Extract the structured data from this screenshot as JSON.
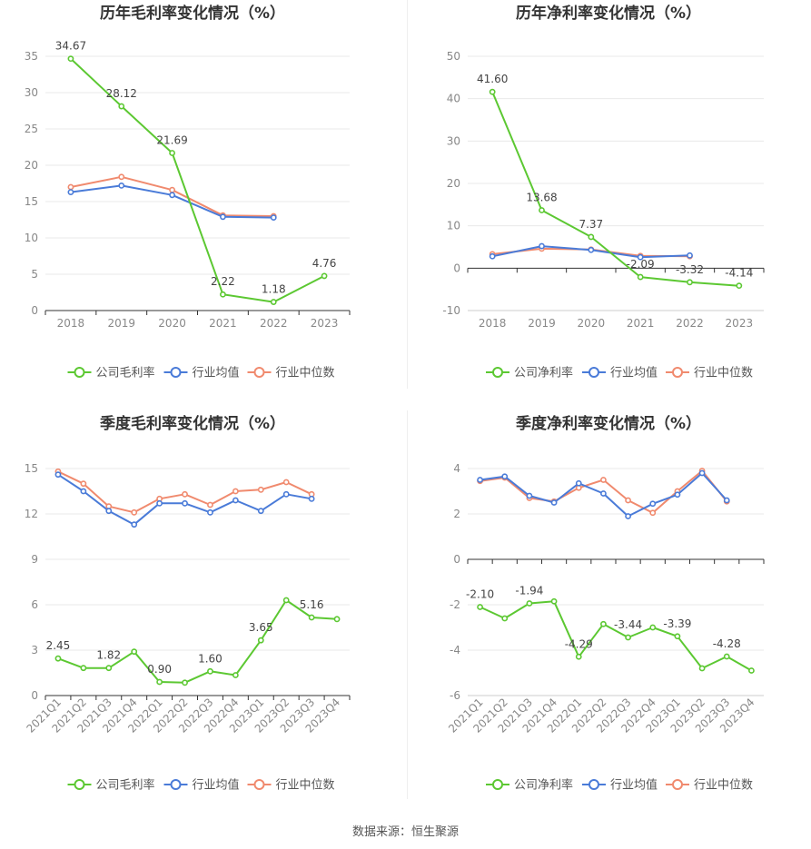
{
  "colors": {
    "company": "#5cc832",
    "industry_avg": "#4a7bd8",
    "industry_median": "#f08a6e",
    "grid": "#e9e9e9",
    "axis": "#333333",
    "tick": "#888888",
    "label": "#444444"
  },
  "source": "数据来源：恒生聚源",
  "chart_data": [
    {
      "type": "line",
      "title": "历年毛利率变化情况（%）",
      "categories": [
        "2018",
        "2019",
        "2020",
        "2021",
        "2022",
        "2023"
      ],
      "ylim": [
        0,
        35
      ],
      "yticks": [
        0,
        5,
        10,
        15,
        20,
        25,
        30,
        35
      ],
      "series": [
        {
          "name": "公司毛利率",
          "color_key": "company",
          "values": [
            34.67,
            28.12,
            21.69,
            2.22,
            1.18,
            4.76
          ]
        },
        {
          "name": "行业均值",
          "color_key": "industry_avg",
          "values": [
            16.3,
            17.2,
            15.9,
            12.9,
            12.8,
            null
          ]
        },
        {
          "name": "行业中位数",
          "color_key": "industry_median",
          "values": [
            17.0,
            18.4,
            16.6,
            13.1,
            13.0,
            null
          ]
        }
      ],
      "data_labels": [
        {
          "index": 0,
          "text": "34.67"
        },
        {
          "index": 1,
          "text": "28.12"
        },
        {
          "index": 2,
          "text": "21.69"
        },
        {
          "index": 3,
          "text": "2.22"
        },
        {
          "index": 4,
          "text": "1.18"
        },
        {
          "index": 5,
          "text": "4.76"
        }
      ],
      "legend": [
        "公司毛利率",
        "行业均值",
        "行业中位数"
      ]
    },
    {
      "type": "line",
      "title": "历年净利率变化情况（%）",
      "categories": [
        "2018",
        "2019",
        "2020",
        "2021",
        "2022",
        "2023"
      ],
      "ylim": [
        -10,
        50
      ],
      "yticks": [
        -10,
        0,
        10,
        20,
        30,
        40,
        50
      ],
      "series": [
        {
          "name": "公司净利率",
          "color_key": "company",
          "values": [
            41.6,
            13.68,
            7.37,
            -2.09,
            -3.32,
            -4.14
          ]
        },
        {
          "name": "行业均值",
          "color_key": "industry_avg",
          "values": [
            2.8,
            5.2,
            4.3,
            2.6,
            3.0,
            null
          ]
        },
        {
          "name": "行业中位数",
          "color_key": "industry_median",
          "values": [
            3.3,
            4.6,
            4.4,
            2.9,
            2.8,
            null
          ]
        }
      ],
      "data_labels": [
        {
          "index": 0,
          "text": "41.60"
        },
        {
          "index": 1,
          "text": "13.68"
        },
        {
          "index": 2,
          "text": "7.37"
        },
        {
          "index": 3,
          "text": "-2.09"
        },
        {
          "index": 4,
          "text": "-3.32"
        },
        {
          "index": 5,
          "text": "-4.14"
        }
      ],
      "legend": [
        "公司净利率",
        "行业均值",
        "行业中位数"
      ]
    },
    {
      "type": "line",
      "title": "季度毛利率变化情况（%）",
      "categories": [
        "2021Q1",
        "2021Q2",
        "2021Q3",
        "2021Q4",
        "2022Q1",
        "2022Q2",
        "2022Q3",
        "2022Q4",
        "2023Q1",
        "2023Q2",
        "2023Q3",
        "2023Q4"
      ],
      "ylim": [
        0,
        15
      ],
      "yticks": [
        0,
        3,
        6,
        9,
        12,
        15
      ],
      "rotate_x": true,
      "series": [
        {
          "name": "公司毛利率",
          "color_key": "company",
          "values": [
            2.45,
            1.82,
            1.82,
            2.9,
            0.9,
            0.85,
            1.6,
            1.35,
            3.65,
            6.3,
            5.16,
            5.05
          ]
        },
        {
          "name": "行业均值",
          "color_key": "industry_avg",
          "values": [
            14.6,
            13.5,
            12.2,
            11.3,
            12.7,
            12.7,
            12.1,
            12.9,
            12.2,
            13.3,
            13.0,
            null
          ]
        },
        {
          "name": "行业中位数",
          "color_key": "industry_median",
          "values": [
            14.8,
            14.0,
            12.5,
            12.1,
            13.0,
            13.3,
            12.6,
            13.5,
            13.6,
            14.1,
            13.3,
            null
          ]
        }
      ],
      "data_labels": [
        {
          "index": 0,
          "text": "2.45"
        },
        {
          "index": 2,
          "text": "1.82"
        },
        {
          "index": 4,
          "text": "0.90"
        },
        {
          "index": 6,
          "text": "1.60"
        },
        {
          "index": 8,
          "text": "3.65"
        },
        {
          "index": 10,
          "text": "5.16"
        }
      ],
      "legend": [
        "公司毛利率",
        "行业均值",
        "行业中位数"
      ]
    },
    {
      "type": "line",
      "title": "季度净利率变化情况（%）",
      "categories": [
        "2021Q1",
        "2021Q2",
        "2021Q3",
        "2021Q4",
        "2022Q1",
        "2022Q2",
        "2022Q3",
        "2022Q4",
        "2023Q1",
        "2023Q2",
        "2023Q3",
        "2023Q4"
      ],
      "ylim": [
        -6,
        4
      ],
      "yticks": [
        -6,
        -4,
        -2,
        0,
        2,
        4
      ],
      "rotate_x": true,
      "series": [
        {
          "name": "公司净利率",
          "color_key": "company",
          "values": [
            -2.1,
            -2.6,
            -1.94,
            -1.85,
            -4.29,
            -2.85,
            -3.44,
            -3.0,
            -3.39,
            -4.8,
            -4.28,
            -4.9
          ]
        },
        {
          "name": "行业均值",
          "color_key": "industry_avg",
          "values": [
            3.5,
            3.65,
            2.8,
            2.5,
            3.35,
            2.9,
            1.9,
            2.45,
            2.85,
            3.8,
            2.6,
            null
          ]
        },
        {
          "name": "行业中位数",
          "color_key": "industry_median",
          "values": [
            3.45,
            3.6,
            2.7,
            2.55,
            3.15,
            3.5,
            2.6,
            2.05,
            3.0,
            3.9,
            2.55,
            null
          ]
        }
      ],
      "data_labels": [
        {
          "index": 0,
          "text": "-2.10"
        },
        {
          "index": 2,
          "text": "-1.94"
        },
        {
          "index": 4,
          "text": "-4.29"
        },
        {
          "index": 6,
          "text": "-3.44"
        },
        {
          "index": 8,
          "text": "-3.39"
        },
        {
          "index": 10,
          "text": "-4.28"
        }
      ],
      "legend": [
        "公司净利率",
        "行业均值",
        "行业中位数"
      ]
    }
  ]
}
